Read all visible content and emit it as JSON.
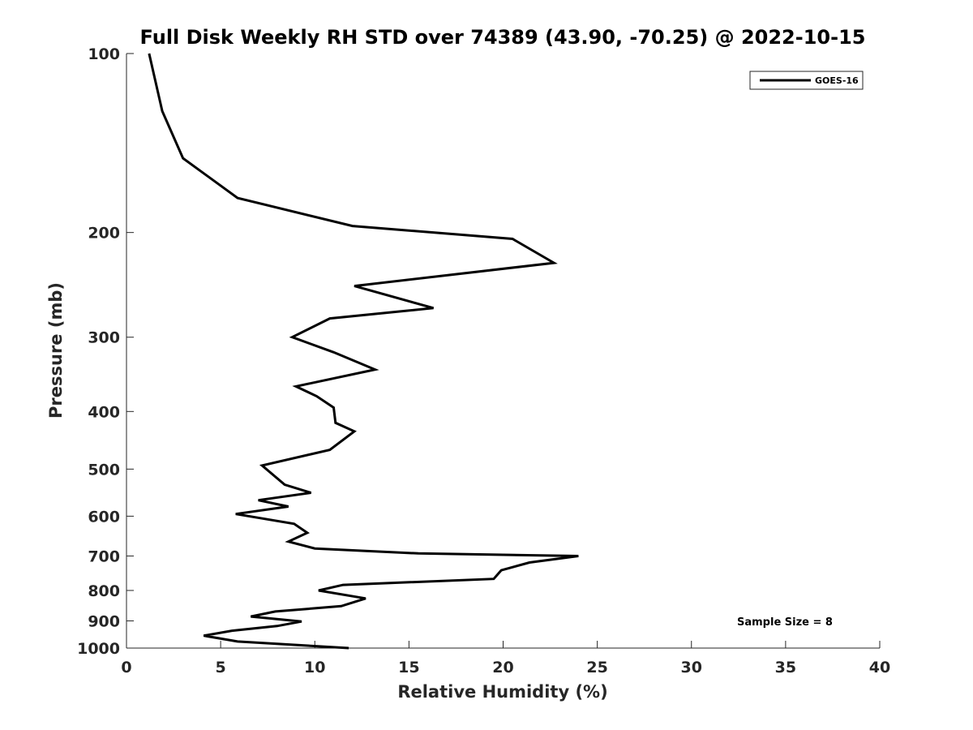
{
  "chart_data": {
    "type": "line",
    "title": "Full Disk Weekly RH STD over 74389 (43.90, -70.25) @ 2022-10-15",
    "xlabel": "Relative Humidity (%)",
    "ylabel": "Pressure (mb)",
    "xlim": [
      0,
      40
    ],
    "ylim": [
      100,
      1000
    ],
    "y_scale": "log",
    "y_reversed": true,
    "x_ticks": [
      "0",
      "5",
      "10",
      "15",
      "20",
      "25",
      "30",
      "35",
      "40"
    ],
    "y_ticks": [
      "100",
      "200",
      "300",
      "400",
      "500",
      "600",
      "700",
      "800",
      "900",
      "1000"
    ],
    "grid": false,
    "legend_position": "top-right",
    "annotation": "Sample Size = 8",
    "series": [
      {
        "name": "GOES-16",
        "color": "#000000",
        "points": [
          [
            1.2,
            100
          ],
          [
            1.9,
            125
          ],
          [
            3.0,
            150
          ],
          [
            5.9,
            175
          ],
          [
            12.0,
            195
          ],
          [
            20.5,
            205
          ],
          [
            22.7,
            225
          ],
          [
            12.1,
            246
          ],
          [
            16.3,
            268
          ],
          [
            10.8,
            279
          ],
          [
            8.8,
            300
          ],
          [
            11.0,
            318
          ],
          [
            13.2,
            340
          ],
          [
            9.0,
            363
          ],
          [
            10.1,
            377
          ],
          [
            11.0,
            394
          ],
          [
            11.1,
            418
          ],
          [
            12.1,
            432
          ],
          [
            10.8,
            464
          ],
          [
            7.2,
            493
          ],
          [
            8.4,
            531
          ],
          [
            9.8,
            548
          ],
          [
            7.0,
            564
          ],
          [
            8.6,
            578
          ],
          [
            5.8,
            595
          ],
          [
            8.9,
            618
          ],
          [
            9.6,
            640
          ],
          [
            8.6,
            662
          ],
          [
            10.0,
            680
          ],
          [
            15.5,
            693
          ],
          [
            24.0,
            700
          ],
          [
            21.4,
            718
          ],
          [
            19.9,
            740
          ],
          [
            19.5,
            765
          ],
          [
            11.5,
            783
          ],
          [
            10.2,
            800
          ],
          [
            12.7,
            825
          ],
          [
            11.4,
            850
          ],
          [
            7.9,
            868
          ],
          [
            6.6,
            885
          ],
          [
            9.3,
            902
          ],
          [
            8.0,
            918
          ],
          [
            5.6,
            935
          ],
          [
            4.1,
            953
          ],
          [
            5.9,
            975
          ],
          [
            11.8,
            1000
          ]
        ]
      }
    ]
  }
}
